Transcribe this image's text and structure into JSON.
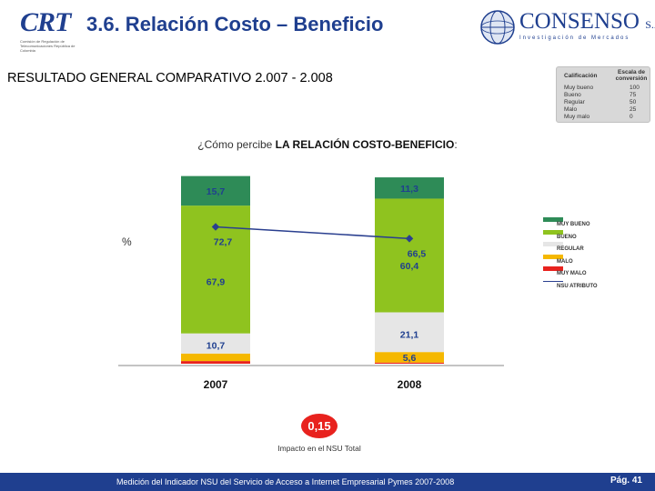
{
  "header": {
    "title": "3.6. Relación Costo – Beneficio",
    "crt_logo_text": "CRT",
    "crt_logo_sub": "Comisión de Regulación de Telecomunicaciones República de Colombia",
    "consenso_logo_text": "CONSENSO",
    "consenso_logo_suffix": "S.A",
    "consenso_tagline": "Investigación de Mercados"
  },
  "subtitle": "RESULTADO GENERAL  COMPARATIVO 2.007 - 2.008",
  "scale_box": {
    "header_left": "Calificación",
    "header_right": "Escala de conversión",
    "rows": [
      {
        "label": "Muy bueno",
        "value": "100"
      },
      {
        "label": "Bueno",
        "value": "75"
      },
      {
        "label": "Regular",
        "value": "50"
      },
      {
        "label": "Malo",
        "value": "25"
      },
      {
        "label": "Muy malo",
        "value": "0"
      }
    ]
  },
  "question": {
    "prefix": "¿Cómo percibe ",
    "bold": "LA RELACIÓN COSTO-BENEFICIO",
    "suffix": ":"
  },
  "chart_data": {
    "type": "bar",
    "stacked": true,
    "categories": [
      "2007",
      "2008"
    ],
    "ylabel": "%",
    "series": [
      {
        "name": "MUY MALO",
        "color": "#e8221e",
        "values": [
          1.4,
          0.6
        ]
      },
      {
        "name": "MALO",
        "color": "#f5b800",
        "values": [
          4.0,
          5.6
        ]
      },
      {
        "name": "REGULAR",
        "color": "#e6e6e6",
        "values": [
          10.7,
          21.1
        ]
      },
      {
        "name": "BUENO",
        "color": "#8fc31f",
        "values": [
          67.9,
          60.4
        ]
      },
      {
        "name": "MUY BUENO",
        "color": "#2e8b57",
        "values": [
          15.7,
          11.3
        ]
      }
    ],
    "bar_labels": [
      {
        "category": "2007",
        "series": "MUY BUENO",
        "text": "15,7"
      },
      {
        "category": "2007",
        "series": "BUENO",
        "text": "67,9"
      },
      {
        "category": "2007",
        "series": "REGULAR",
        "text": "10,7"
      },
      {
        "category": "2008",
        "series": "MUY BUENO",
        "text": "11,3"
      },
      {
        "category": "2008",
        "series": "BUENO",
        "text": "60,4"
      },
      {
        "category": "2008",
        "series": "REGULAR",
        "text": "21,1"
      },
      {
        "category": "2008",
        "series": "MALO",
        "text": "5,6"
      }
    ],
    "line": {
      "name": "NSU ATRIBUTO",
      "color": "#2a3f8f",
      "values": [
        72.7,
        66.5
      ],
      "labels": [
        "72,7",
        "66,5"
      ]
    },
    "ylim": [
      0,
      100
    ],
    "legend_position": "right",
    "legend_order": [
      "MUY BUENO",
      "BUENO",
      "REGULAR",
      "MALO",
      "MUY MALO",
      "NSU ATRIBUTO"
    ]
  },
  "impact": {
    "value": "0,15",
    "label": "Impacto en el NSU Total",
    "color": "#e8221e"
  },
  "footer": {
    "text": "Medición del Indicador NSU del Servicio de Acceso a Internet Empresarial Pymes 2007-2008",
    "page": "Pág. 41"
  }
}
